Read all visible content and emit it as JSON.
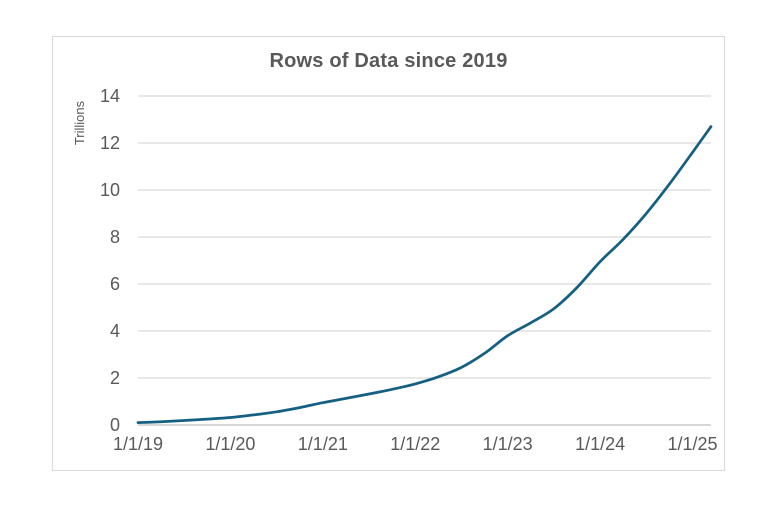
{
  "chart_data": {
    "type": "line",
    "title": "Rows of Data since 2019",
    "xlabel": "",
    "ylabel": "Trillions",
    "x_tick_labels": [
      "1/1/19",
      "1/1/20",
      "1/1/21",
      "1/1/22",
      "1/1/23",
      "1/1/24",
      "1/1/25"
    ],
    "y_tick_values": [
      0,
      2,
      4,
      6,
      8,
      10,
      12,
      14
    ],
    "ylim": [
      0,
      14
    ],
    "x_range_years_since_2019": [
      0,
      6.2
    ],
    "grid": true,
    "legend": false,
    "colors": {
      "line": "#156082",
      "gridline": "#d9d9d9",
      "axis_line": "#bfbfbf",
      "tick_text": "#595959",
      "title_text": "#595959",
      "chart_border": "#d9d9d9",
      "background": "#ffffff"
    },
    "series": [
      {
        "name": "Rows of data (trillions)",
        "x_years_since_2019": [
          0,
          0.25,
          0.5,
          0.75,
          1,
          1.25,
          1.5,
          1.75,
          2,
          2.25,
          2.5,
          2.75,
          3,
          3.25,
          3.5,
          3.75,
          4,
          4.25,
          4.5,
          4.75,
          5,
          5.25,
          5.5,
          5.75,
          6,
          6.2
        ],
        "values": [
          0.1,
          0.14,
          0.19,
          0.25,
          0.32,
          0.43,
          0.56,
          0.74,
          0.95,
          1.13,
          1.32,
          1.52,
          1.75,
          2.05,
          2.45,
          3.05,
          3.8,
          4.35,
          4.95,
          5.85,
          6.95,
          7.9,
          9.0,
          10.25,
          11.6,
          12.7
        ]
      }
    ]
  }
}
